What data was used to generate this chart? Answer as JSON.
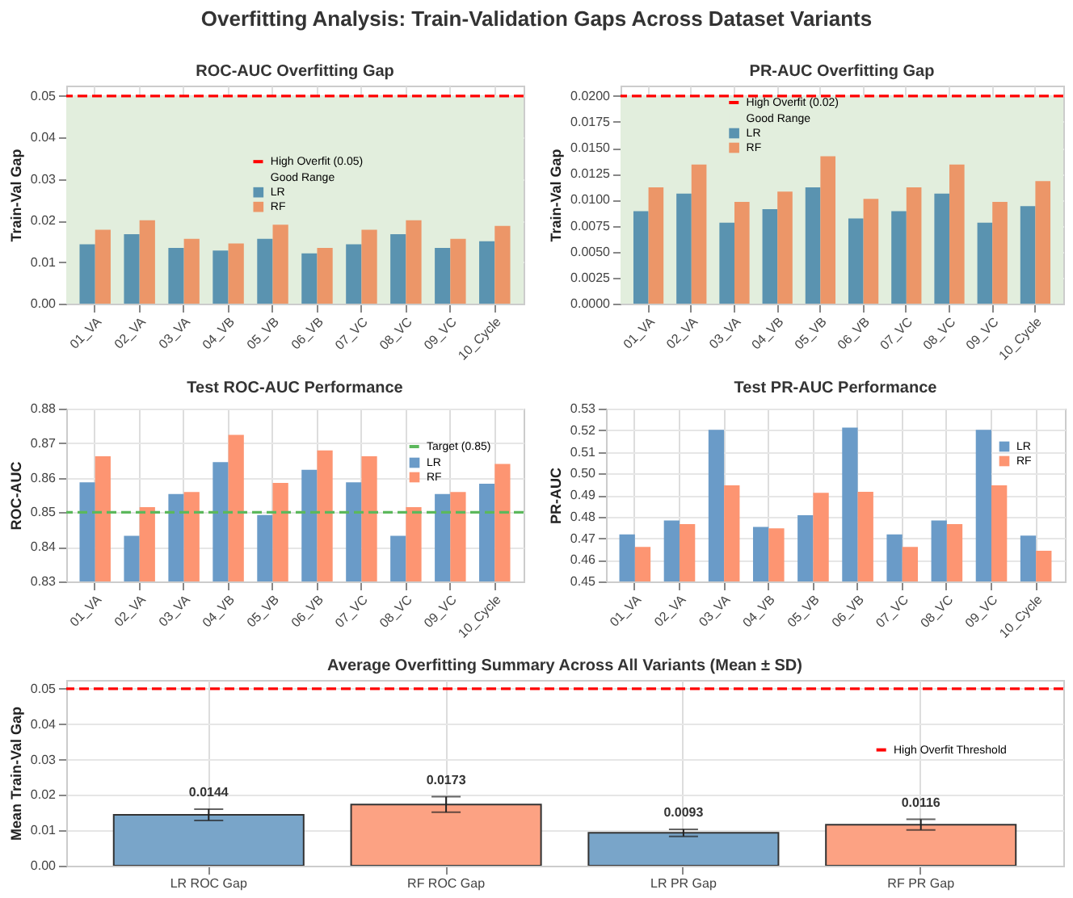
{
  "chart_data": [
    {
      "type": "other",
      "title": "Overfitting Analysis: Train-Validation Gaps Across Dataset Variants"
    },
    {
      "type": "bar",
      "title": "ROC-AUC Overfitting Gap",
      "ylabel": "Train-Val Gap",
      "categories": [
        "01_VA",
        "02_VA",
        "03_VA",
        "04_VB",
        "05_VB",
        "06_VB",
        "07_VC",
        "08_VC",
        "09_VC",
        "10_Cycle"
      ],
      "series": [
        {
          "name": "LR",
          "color": "#5a93b0",
          "values": [
            0.0143,
            0.0167,
            0.0134,
            0.0128,
            0.0156,
            0.0121,
            0.0143,
            0.0167,
            0.0134,
            0.015
          ]
        },
        {
          "name": "RF",
          "color": "#ec9668",
          "values": [
            0.0178,
            0.0201,
            0.0156,
            0.0145,
            0.019,
            0.0134,
            0.0178,
            0.0201,
            0.0156,
            0.0187
          ]
        }
      ],
      "ylim": [
        0,
        0.0525
      ],
      "yticks": [
        {
          "value": 0,
          "label": "0.00"
        },
        0.01,
        0.02,
        0.03,
        0.04,
        0.05
      ],
      "grid": true,
      "legend": "center",
      "ref_lines": [
        {
          "axis": "y",
          "value": 0.05,
          "label": "High Overfit (0.05)",
          "color": "#ff0000",
          "line_style": "dashed"
        }
      ],
      "bands": [
        {
          "axis": "y",
          "from": 0,
          "to": 0.05,
          "label": "Good Range",
          "color": "#e2eedd"
        }
      ]
    },
    {
      "type": "bar",
      "title": "PR-AUC Overfitting Gap",
      "ylabel": "Train-Val Gap",
      "categories": [
        "01_VA",
        "02_VA",
        "03_VA",
        "04_VB",
        "05_VB",
        "06_VB",
        "07_VC",
        "08_VC",
        "09_VC",
        "10_Cycle"
      ],
      "series": [
        {
          "name": "LR",
          "color": "#5a93b0",
          "values": [
            0.0089,
            0.0106,
            0.0078,
            0.0091,
            0.0112,
            0.0082,
            0.0089,
            0.0106,
            0.0078,
            0.0094
          ]
        },
        {
          "name": "RF",
          "color": "#ec9668",
          "values": [
            0.0112,
            0.0134,
            0.0098,
            0.0108,
            0.0142,
            0.0101,
            0.0112,
            0.0134,
            0.0098,
            0.0118
          ]
        }
      ],
      "ylim": [
        0,
        0.021
      ],
      "yticks": [
        {
          "value": 0,
          "label": "0.0000"
        },
        0.0025,
        {
          "value": 0.005,
          "label": "0.0050"
        },
        0.0075,
        {
          "value": 0.01,
          "label": "0.0100"
        },
        0.0125,
        {
          "value": 0.015,
          "label": "0.0150"
        },
        0.0175,
        {
          "value": 0.02,
          "label": "0.0200"
        }
      ],
      "grid": true,
      "legend": "top",
      "ref_lines": [
        {
          "axis": "y",
          "value": 0.02,
          "label": "High Overfit (0.02)",
          "color": "#ff0000",
          "line_style": "dashed"
        }
      ],
      "bands": [
        {
          "axis": "y",
          "from": 0,
          "to": 0.02,
          "label": "Good Range",
          "color": "#e2eedd"
        }
      ]
    },
    {
      "type": "bar",
      "title": "Test ROC-AUC Performance",
      "ylabel": "ROC-AUC",
      "categories": [
        "01_VA",
        "02_VA",
        "03_VA",
        "04_VB",
        "05_VB",
        "06_VB",
        "07_VC",
        "08_VC",
        "09_VC",
        "10_Cycle"
      ],
      "series": [
        {
          "name": "LR",
          "color": "#6a9bc8",
          "values": [
            0.8587,
            0.8432,
            0.8553,
            0.8645,
            0.8492,
            0.8623,
            0.8587,
            0.8432,
            0.8553,
            0.8583
          ]
        },
        {
          "name": "RF",
          "color": "#fd9572",
          "values": [
            0.8662,
            0.8515,
            0.8559,
            0.8724,
            0.8585,
            0.8679,
            0.8662,
            0.8515,
            0.8559,
            0.864
          ]
        }
      ],
      "ylim": [
        0.83,
        0.88
      ],
      "yticks": [
        0.83,
        0.84,
        0.85,
        0.86,
        0.87,
        0.88
      ],
      "grid": true,
      "legend": "top right",
      "ref_lines": [
        {
          "axis": "y",
          "value": 0.85,
          "label": "Target (0.85)",
          "color": "#5cb85c",
          "line_style": "dashed"
        }
      ]
    },
    {
      "type": "bar",
      "title": "Test PR-AUC Performance",
      "ylabel": "PR-AUC",
      "categories": [
        "01_VA",
        "02_VA",
        "03_VA",
        "04_VB",
        "05_VB",
        "06_VB",
        "07_VC",
        "08_VC",
        "09_VC",
        "10_Cycle"
      ],
      "series": [
        {
          "name": "LR",
          "color": "#6a9bc8",
          "values": [
            0.4718,
            0.4782,
            0.5202,
            0.4752,
            0.4807,
            0.5212,
            0.4718,
            0.4782,
            0.5202,
            0.4712
          ]
        },
        {
          "name": "RF",
          "color": "#fd9572",
          "values": [
            0.466,
            0.4765,
            0.4945,
            0.4746,
            0.491,
            0.4915,
            0.466,
            0.4765,
            0.4945,
            0.4642
          ]
        }
      ],
      "ylim": [
        0.45,
        0.53
      ],
      "yticks": [
        0.45,
        0.46,
        0.47,
        0.48,
        0.49,
        {
          "value": 0.5,
          "label": "0.50"
        },
        0.51,
        0.52,
        0.53
      ],
      "grid": true,
      "legend": "top right"
    },
    {
      "type": "bar",
      "title": "Average Overfitting Summary Across All Variants (Mean ± SD)",
      "ylabel": "Mean Train-Val Gap",
      "categories": [
        "LR ROC Gap",
        "RF ROC Gap",
        "LR PR Gap",
        "RF PR Gap"
      ],
      "values": [
        0.0144,
        0.0173,
        0.0093,
        0.0116
      ],
      "colors": [
        "#79a5c9",
        "#fca283",
        "#79a5c9",
        "#fca283"
      ],
      "errors": [
        0.0016,
        0.0022,
        0.001,
        0.0015
      ],
      "data_labels": true,
      "ylim": [
        0,
        0.0525
      ],
      "yticks": [
        {
          "value": 0,
          "label": "0.00"
        },
        0.01,
        0.02,
        0.03,
        0.04,
        0.05
      ],
      "grid": true,
      "legend": "right",
      "ref_lines": [
        {
          "axis": "y",
          "value": 0.05,
          "label": "High Overfit Threshold",
          "color": "#ff0000",
          "line_style": "dashed"
        }
      ]
    }
  ]
}
